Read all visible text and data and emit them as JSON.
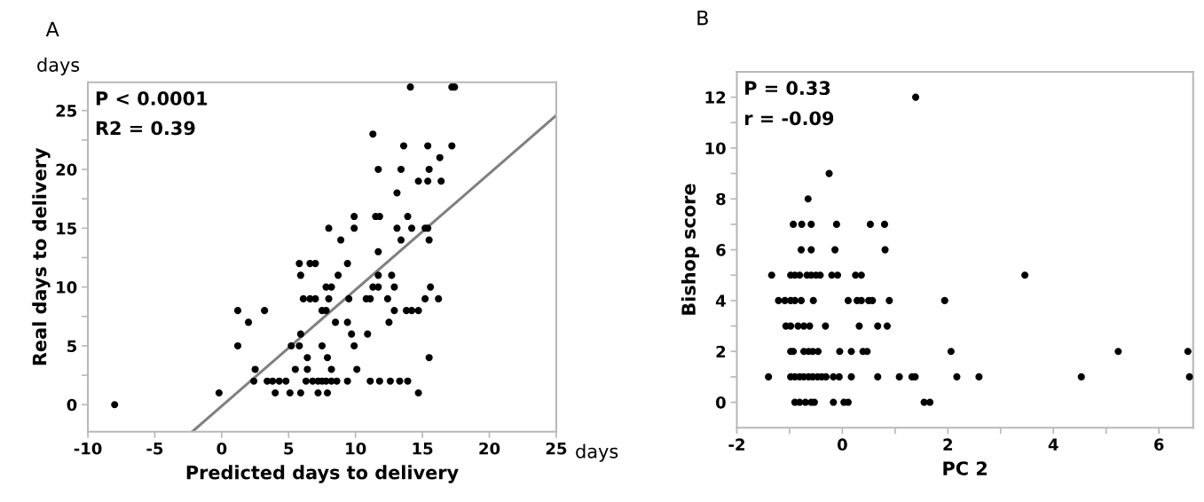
{
  "chart_data": [
    {
      "type": "scatter",
      "title": "A",
      "xlabel": "Predicted days to delivery",
      "ylabel": "Real days to delivery",
      "annotations": [
        "P < 0.0001",
        "R2 = 0.39",
        "days",
        "days"
      ],
      "xlim": [
        -10,
        25
      ],
      "xticks": [
        -10,
        -5,
        0,
        5,
        10,
        15,
        20,
        25
      ],
      "ylim": [
        -2.3,
        27.4
      ],
      "yticks": [
        0,
        {
          "value": 2.5,
          "label": null
        },
        5,
        {
          "value": 7.5,
          "label": null
        },
        10,
        {
          "value": 12.5,
          "label": null
        },
        15,
        {
          "value": 17.5,
          "label": null
        },
        20,
        {
          "value": 22.5,
          "label": null
        },
        25
      ],
      "grid": false,
      "series": [
        {
          "marker": "circle",
          "color": "#000000",
          "x": [
            -8.0,
            -0.2,
            4.0,
            5.1,
            5.9,
            7.2,
            7.9,
            14.7,
            2.4,
            3.4,
            3.8,
            4.3,
            4.8,
            6.3,
            6.8,
            7.2,
            7.5,
            7.8,
            8.2,
            8.6,
            9.4,
            11.1,
            11.8,
            12.6,
            13.3,
            13.9,
            2.5,
            5.5,
            6.4,
            8.2,
            10.1,
            6.4,
            7.9,
            15.5,
            1.2,
            5.2,
            5.8,
            7.5,
            9.9,
            5.9,
            9.7,
            10.9,
            2.0,
            8.5,
            9.4,
            12.5,
            1.2,
            3.2,
            7.5,
            7.8,
            12.9,
            13.8,
            14.2,
            14.7,
            6.1,
            6.6,
            7.0,
            8.0,
            9.5,
            10.8,
            11.1,
            12.4,
            15.2,
            16.2,
            7.8,
            8.2,
            11.3,
            11.7,
            12.9,
            15.6,
            5.9,
            8.7,
            11.7,
            12.7,
            5.8,
            6.6,
            7.0,
            9.4,
            11.7,
            8.9,
            13.4,
            15.5,
            8.0,
            9.9,
            13.1,
            14.2,
            15.2,
            15.4,
            9.9,
            11.5,
            11.8,
            13.9,
            13.1,
            14.7,
            15.4,
            16.4,
            11.7,
            13.4,
            15.5,
            16.3,
            13.6,
            15.4,
            17.2,
            11.3,
            14.1,
            17.2,
            17.4
          ],
          "values": [
            0,
            1,
            1,
            1,
            1,
            1,
            1,
            1,
            2,
            2,
            2,
            2,
            2,
            2,
            2,
            2,
            2,
            2,
            2,
            2,
            2,
            2,
            2,
            2,
            2,
            2,
            3,
            3,
            3,
            3,
            3,
            4,
            4,
            4,
            5,
            5,
            5,
            5,
            5,
            6,
            6,
            6,
            7,
            7,
            7,
            7,
            8,
            8,
            8,
            8,
            8,
            8,
            8,
            8,
            9,
            9,
            9,
            9,
            9,
            9,
            9,
            9,
            9,
            9,
            10,
            10,
            10,
            10,
            10,
            10,
            11,
            11,
            11,
            11,
            12,
            12,
            12,
            12,
            13,
            14,
            14,
            14,
            15,
            15,
            15,
            15,
            15,
            15,
            16,
            16,
            16,
            16,
            18,
            19,
            19,
            19,
            20,
            20,
            20,
            21,
            22,
            22,
            22,
            23,
            27,
            27,
            27
          ]
        },
        {
          "type": "line",
          "color": "#808080",
          "x": [
            -2.2,
            25
          ],
          "values": [
            -2.3,
            24.6
          ]
        }
      ]
    },
    {
      "type": "scatter",
      "title": "B",
      "xlabel": "PC 2",
      "ylabel": "Bishop score",
      "annotations": [
        "P = 0.33",
        "r = -0.09"
      ],
      "xlim": [
        -2,
        6.65
      ],
      "xticks": [
        -2,
        {
          "value": -1,
          "label": null
        },
        0,
        {
          "value": 1,
          "label": null
        },
        2,
        {
          "value": 3,
          "label": null
        },
        4,
        {
          "value": 5,
          "label": null
        },
        6
      ],
      "ylim": [
        -1,
        13
      ],
      "yticks": [
        0,
        {
          "value": 1,
          "label": null
        },
        2,
        {
          "value": 3,
          "label": null
        },
        4,
        {
          "value": 5,
          "label": null
        },
        6,
        {
          "value": 7,
          "label": null
        },
        8,
        {
          "value": 9,
          "label": null
        },
        10,
        {
          "value": 11,
          "label": null
        },
        12
      ],
      "grid": false,
      "series": [
        {
          "marker": "circle",
          "color": "#000000",
          "x": [
            -0.9,
            -0.81,
            -0.7,
            -0.59,
            -0.53,
            -0.17,
            0.03,
            0.11,
            1.55,
            1.66,
            -1.4,
            -0.98,
            -0.9,
            -0.81,
            -0.73,
            -0.64,
            -0.56,
            -0.47,
            -0.39,
            -0.31,
            -0.17,
            -0.06,
            0.17,
            0.67,
            1.08,
            1.32,
            1.38,
            2.17,
            2.59,
            4.53,
            6.58,
            -0.98,
            -0.93,
            -0.73,
            -0.64,
            -0.56,
            -0.46,
            -0.05,
            0.17,
            0.39,
            0.47,
            2.06,
            5.23,
            6.55,
            -1.07,
            -0.98,
            -0.84,
            -0.73,
            -0.62,
            -0.32,
            0.32,
            0.67,
            0.85,
            -1.21,
            -1.09,
            -0.98,
            -0.9,
            -0.78,
            -0.55,
            0.11,
            0.28,
            0.36,
            0.5,
            0.57,
            0.89,
            1.94,
            -1.34,
            -0.98,
            -0.9,
            -0.81,
            -0.67,
            -0.59,
            -0.5,
            -0.42,
            -0.2,
            -0.09,
            0.25,
            0.36,
            3.46,
            -0.78,
            -0.59,
            -0.14,
            0.81,
            -0.93,
            -0.77,
            -0.59,
            -0.11,
            0.53,
            0.8,
            -0.65,
            -0.25,
            1.39
          ],
          "values": [
            0,
            0,
            0,
            0,
            0,
            0,
            0,
            0,
            0,
            0,
            1,
            1,
            1,
            1,
            1,
            1,
            1,
            1,
            1,
            1,
            1,
            1,
            1,
            1,
            1,
            1,
            1,
            1,
            1,
            1,
            1,
            2,
            2,
            2,
            2,
            2,
            2,
            2,
            2,
            2,
            2,
            2,
            2,
            2,
            3,
            3,
            3,
            3,
            3,
            3,
            3,
            3,
            3,
            4,
            4,
            4,
            4,
            4,
            4,
            4,
            4,
            4,
            4,
            4,
            4,
            4,
            5,
            5,
            5,
            5,
            5,
            5,
            5,
            5,
            5,
            5,
            5,
            5,
            5,
            6,
            6,
            6,
            6,
            7,
            7,
            7,
            7,
            7,
            7,
            8,
            9,
            12
          ]
        }
      ]
    }
  ]
}
